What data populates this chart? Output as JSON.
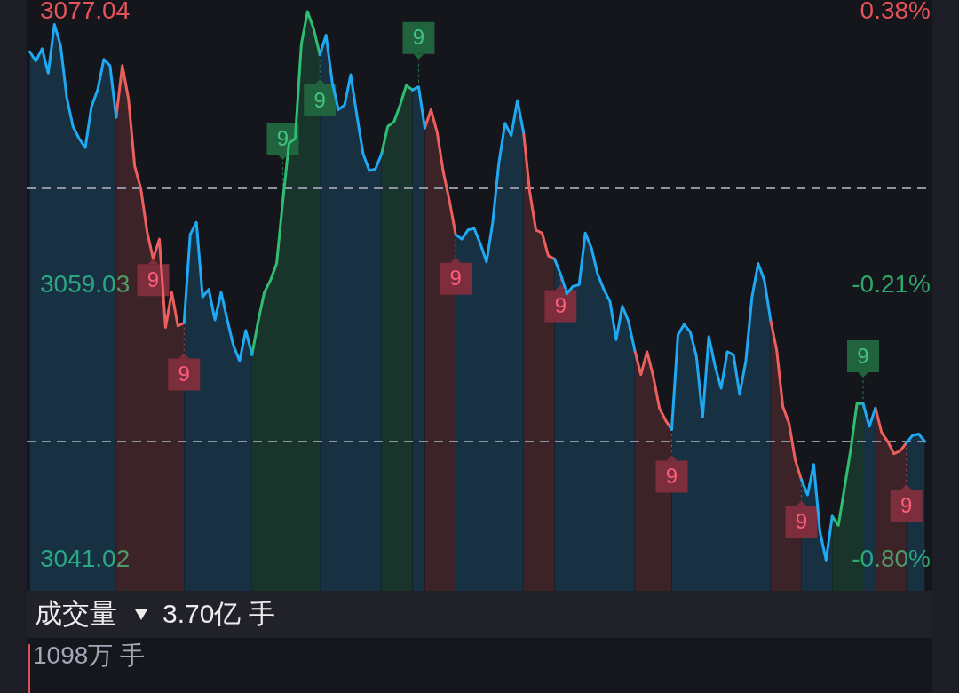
{
  "chart_data": {
    "type": "area",
    "categories": [
      null,
      null,
      null,
      null,
      null,
      null,
      null,
      null,
      null,
      null,
      null,
      null,
      null,
      null,
      null,
      null,
      null,
      null,
      null,
      null,
      null,
      null,
      null,
      null,
      null,
      null,
      null,
      null,
      null,
      null,
      null,
      null,
      null,
      null,
      null,
      null,
      null,
      null,
      null,
      null,
      null,
      null,
      null,
      null,
      null,
      null,
      null,
      null,
      null,
      null,
      null,
      null,
      null,
      null,
      null,
      null,
      null,
      null,
      null,
      null,
      null,
      null,
      null,
      null,
      null,
      null,
      null,
      null,
      null,
      null,
      null,
      null,
      null,
      null,
      null,
      null,
      null,
      null,
      null,
      null,
      null,
      null,
      null,
      null,
      null,
      null,
      null,
      null,
      null,
      null,
      null,
      null,
      null,
      null,
      null,
      null,
      null,
      null,
      null,
      null,
      null,
      null,
      null,
      null,
      null,
      null,
      null,
      null,
      null,
      null,
      null,
      null,
      null,
      null,
      null,
      null,
      null,
      null,
      null,
      null,
      null,
      null,
      null,
      null,
      null,
      null,
      null,
      null,
      null,
      null,
      null,
      null,
      null,
      null,
      null,
      null,
      null,
      null,
      null,
      null,
      null,
      null,
      null,
      null,
      null,
      null
    ],
    "series": [
      {
        "color": "#1fa9f2",
        "values": [
          3074.4,
          3073.8,
          3074.6,
          3073.0,
          3076.2,
          3074.8,
          3071.4,
          3069.5,
          3068.7,
          3068.1,
          3070.8,
          3071.9,
          3073.9,
          3073.5,
          3070.1,
          null,
          null,
          null,
          null,
          null,
          null,
          null,
          null,
          null,
          null,
          3056.6,
          3062.4,
          3063.2,
          3058.3,
          3058.8,
          3056.8,
          3058.6,
          3056.8,
          3055.1,
          3054.1,
          3056.1,
          3054.5,
          null,
          null,
          null,
          null,
          null,
          null,
          null,
          null,
          null,
          null,
          3074.2,
          3075.5,
          3072.4,
          3070.6,
          3070.9,
          3072.9,
          3070.2,
          3067.7,
          3066.6,
          3066.7,
          3067.7,
          null,
          null,
          null,
          null,
          3071.9,
          3072.1,
          3069.4,
          null,
          null,
          null,
          null,
          3062.4,
          3062.1,
          3062.7,
          3062.8,
          3061.8,
          3060.6,
          3063.2,
          3067.1,
          3069.7,
          3068.9,
          3071.2,
          3069.1,
          null,
          null,
          null,
          null,
          3060.8,
          3059.8,
          3058.5,
          3059.0,
          3059.1,
          3062.5,
          3061.5,
          3059.8,
          3058.8,
          3058.0,
          3055.5,
          3057.7,
          3056.7,
          3054.8,
          null,
          null,
          null,
          null,
          null,
          3049.6,
          3055.8,
          3056.5,
          3056.0,
          3054.4,
          3050.4,
          3055.7,
          3053.8,
          3052.3,
          3054.7,
          3054.5,
          3051.9,
          3054.1,
          3058.3,
          3060.5,
          3059.4,
          3056.8,
          null,
          null,
          null,
          null,
          3046.3,
          3045.3,
          3047.3,
          3042.9,
          3041.02,
          3043.9,
          null,
          null,
          null,
          null,
          3051.3,
          3049.8,
          3051.0,
          null,
          null,
          null,
          null,
          3048.7,
          3049.2,
          3049.3,
          3048.8
        ]
      },
      {
        "color": "#ec5f5f",
        "values": [
          null,
          null,
          null,
          null,
          null,
          null,
          null,
          null,
          null,
          null,
          null,
          null,
          null,
          null,
          3070.1,
          3073.5,
          3071.3,
          3066.9,
          3065.4,
          3062.6,
          3060.8,
          3062.1,
          3056.3,
          3058.6,
          3056.4,
          3056.6,
          null,
          null,
          null,
          null,
          null,
          null,
          null,
          null,
          null,
          null,
          null,
          null,
          null,
          null,
          null,
          null,
          null,
          null,
          null,
          null,
          null,
          null,
          null,
          null,
          null,
          null,
          null,
          null,
          null,
          null,
          null,
          null,
          null,
          null,
          null,
          null,
          null,
          null,
          3069.4,
          3070.6,
          3069.1,
          3066.5,
          3064.6,
          3062.4,
          null,
          null,
          null,
          null,
          null,
          null,
          null,
          null,
          null,
          null,
          3069.1,
          3065.2,
          3062.7,
          3062.5,
          3061.0,
          3060.8,
          null,
          null,
          null,
          null,
          null,
          null,
          null,
          null,
          null,
          null,
          null,
          null,
          3054.8,
          3053.2,
          3054.7,
          3053.1,
          3051.0,
          3050.2,
          3049.6,
          null,
          null,
          null,
          null,
          null,
          null,
          null,
          null,
          null,
          null,
          null,
          null,
          null,
          null,
          null,
          3056.8,
          3054.8,
          3051.1,
          3050.0,
          3047.6,
          3046.3,
          null,
          null,
          null,
          null,
          null,
          null,
          null,
          null,
          null,
          null,
          null,
          3051.0,
          3049.4,
          3048.8,
          3048.0,
          3048.2,
          3048.7,
          null,
          null,
          null
        ]
      },
      {
        "color": "#2fbd72",
        "values": [
          null,
          null,
          null,
          null,
          null,
          null,
          null,
          null,
          null,
          null,
          null,
          null,
          null,
          null,
          null,
          null,
          null,
          null,
          null,
          null,
          null,
          null,
          null,
          null,
          null,
          null,
          null,
          null,
          null,
          null,
          null,
          null,
          null,
          null,
          null,
          null,
          3054.5,
          3056.7,
          3058.6,
          3059.4,
          3060.5,
          3064.6,
          3068.4,
          3068.7,
          3074.9,
          3077.04,
          3075.9,
          3074.2,
          null,
          null,
          null,
          null,
          null,
          null,
          null,
          null,
          null,
          3067.7,
          3069.5,
          3069.8,
          3070.9,
          3072.2,
          3071.9,
          null,
          null,
          null,
          null,
          null,
          null,
          null,
          null,
          null,
          null,
          null,
          null,
          null,
          null,
          null,
          null,
          null,
          null,
          null,
          null,
          null,
          null,
          null,
          null,
          null,
          null,
          null,
          null,
          null,
          null,
          null,
          null,
          null,
          null,
          null,
          null,
          null,
          null,
          null,
          null,
          null,
          null,
          null,
          null,
          null,
          null,
          null,
          null,
          null,
          null,
          null,
          null,
          null,
          null,
          null,
          null,
          null,
          null,
          null,
          null,
          null,
          null,
          null,
          null,
          null,
          null,
          null,
          3043.9,
          3043.3,
          3045.8,
          3048.3,
          3051.3,
          3051.3,
          null,
          null,
          null,
          null,
          null,
          null,
          null,
          null,
          null,
          null
        ]
      },
      {
        "type": "scatter",
        "name": "9",
        "color": "#7d2e3d",
        "marker": "square",
        "values": [
          null,
          null,
          null,
          null,
          null,
          null,
          null,
          null,
          null,
          null,
          null,
          null,
          null,
          null,
          null,
          null,
          null,
          null,
          null,
          null,
          3059.4,
          null,
          null,
          null,
          null,
          3053.2,
          null,
          null,
          null,
          null,
          null,
          null,
          null,
          null,
          null,
          null,
          null,
          null,
          null,
          null,
          null,
          null,
          null,
          null,
          null,
          null,
          null,
          null,
          null,
          null,
          null,
          null,
          null,
          null,
          null,
          null,
          null,
          null,
          null,
          null,
          null,
          null,
          null,
          null,
          null,
          null,
          null,
          null,
          null,
          3059.5,
          null,
          null,
          null,
          null,
          null,
          null,
          null,
          null,
          null,
          null,
          null,
          null,
          null,
          null,
          null,
          null,
          3057.7,
          null,
          null,
          null,
          null,
          null,
          null,
          null,
          null,
          null,
          null,
          null,
          null,
          null,
          null,
          null,
          null,
          null,
          3046.5,
          null,
          null,
          null,
          null,
          null,
          null,
          null,
          null,
          null,
          null,
          null,
          null,
          null,
          null,
          null,
          null,
          null,
          null,
          null,
          null,
          3043.5,
          null,
          null,
          null,
          null,
          null,
          null,
          null,
          null,
          null,
          null,
          null,
          null,
          null,
          null,
          null,
          null,
          3044.6,
          null,
          null,
          null
        ]
      },
      {
        "type": "scatter",
        "name": "9",
        "color": "#21623f",
        "marker": "square",
        "values": [
          null,
          null,
          null,
          null,
          null,
          null,
          null,
          null,
          null,
          null,
          null,
          null,
          null,
          null,
          null,
          null,
          null,
          null,
          null,
          null,
          null,
          null,
          null,
          null,
          null,
          null,
          null,
          null,
          null,
          null,
          null,
          null,
          null,
          null,
          null,
          null,
          null,
          null,
          null,
          null,
          null,
          3068.7,
          null,
          null,
          null,
          null,
          null,
          3071.2,
          null,
          null,
          null,
          null,
          null,
          null,
          null,
          null,
          null,
          null,
          null,
          null,
          null,
          null,
          null,
          3075.3,
          null,
          null,
          null,
          null,
          null,
          null,
          null,
          null,
          null,
          null,
          null,
          null,
          null,
          null,
          null,
          null,
          null,
          null,
          null,
          null,
          null,
          null,
          null,
          null,
          null,
          null,
          null,
          null,
          null,
          null,
          null,
          null,
          null,
          null,
          null,
          null,
          null,
          null,
          null,
          null,
          null,
          null,
          null,
          null,
          null,
          null,
          null,
          null,
          null,
          null,
          null,
          null,
          null,
          null,
          null,
          null,
          null,
          null,
          null,
          null,
          null,
          null,
          null,
          null,
          null,
          null,
          null,
          null,
          null,
          null,
          null,
          3054.4,
          null,
          null,
          null,
          null,
          null,
          null,
          null,
          null,
          null,
          null
        ]
      }
    ],
    "ylim": [
      3039.0,
      3077.8
    ],
    "yticks": [
      3041.02,
      3059.03,
      3077.04
    ],
    "y2lim": [
      -0.866,
      0.405
    ],
    "y2ticks": [
      {
        "value": -0.8,
        "label": "-0.80%"
      },
      {
        "value": -0.21,
        "label": "-0.21%"
      },
      {
        "value": 0.38,
        "label": "0.38%"
      }
    ],
    "ref_lines": [
      {
        "axis": "y2",
        "value": 0,
        "line_style": "dashed",
        "color": "#8e94a2"
      },
      {
        "axis": "y",
        "value": 3048.8,
        "line_style": "dashed",
        "color": "#8e94a2"
      }
    ],
    "annotations": [
      "成交量",
      "3.70亿 手",
      "1098万 手"
    ]
  }
}
